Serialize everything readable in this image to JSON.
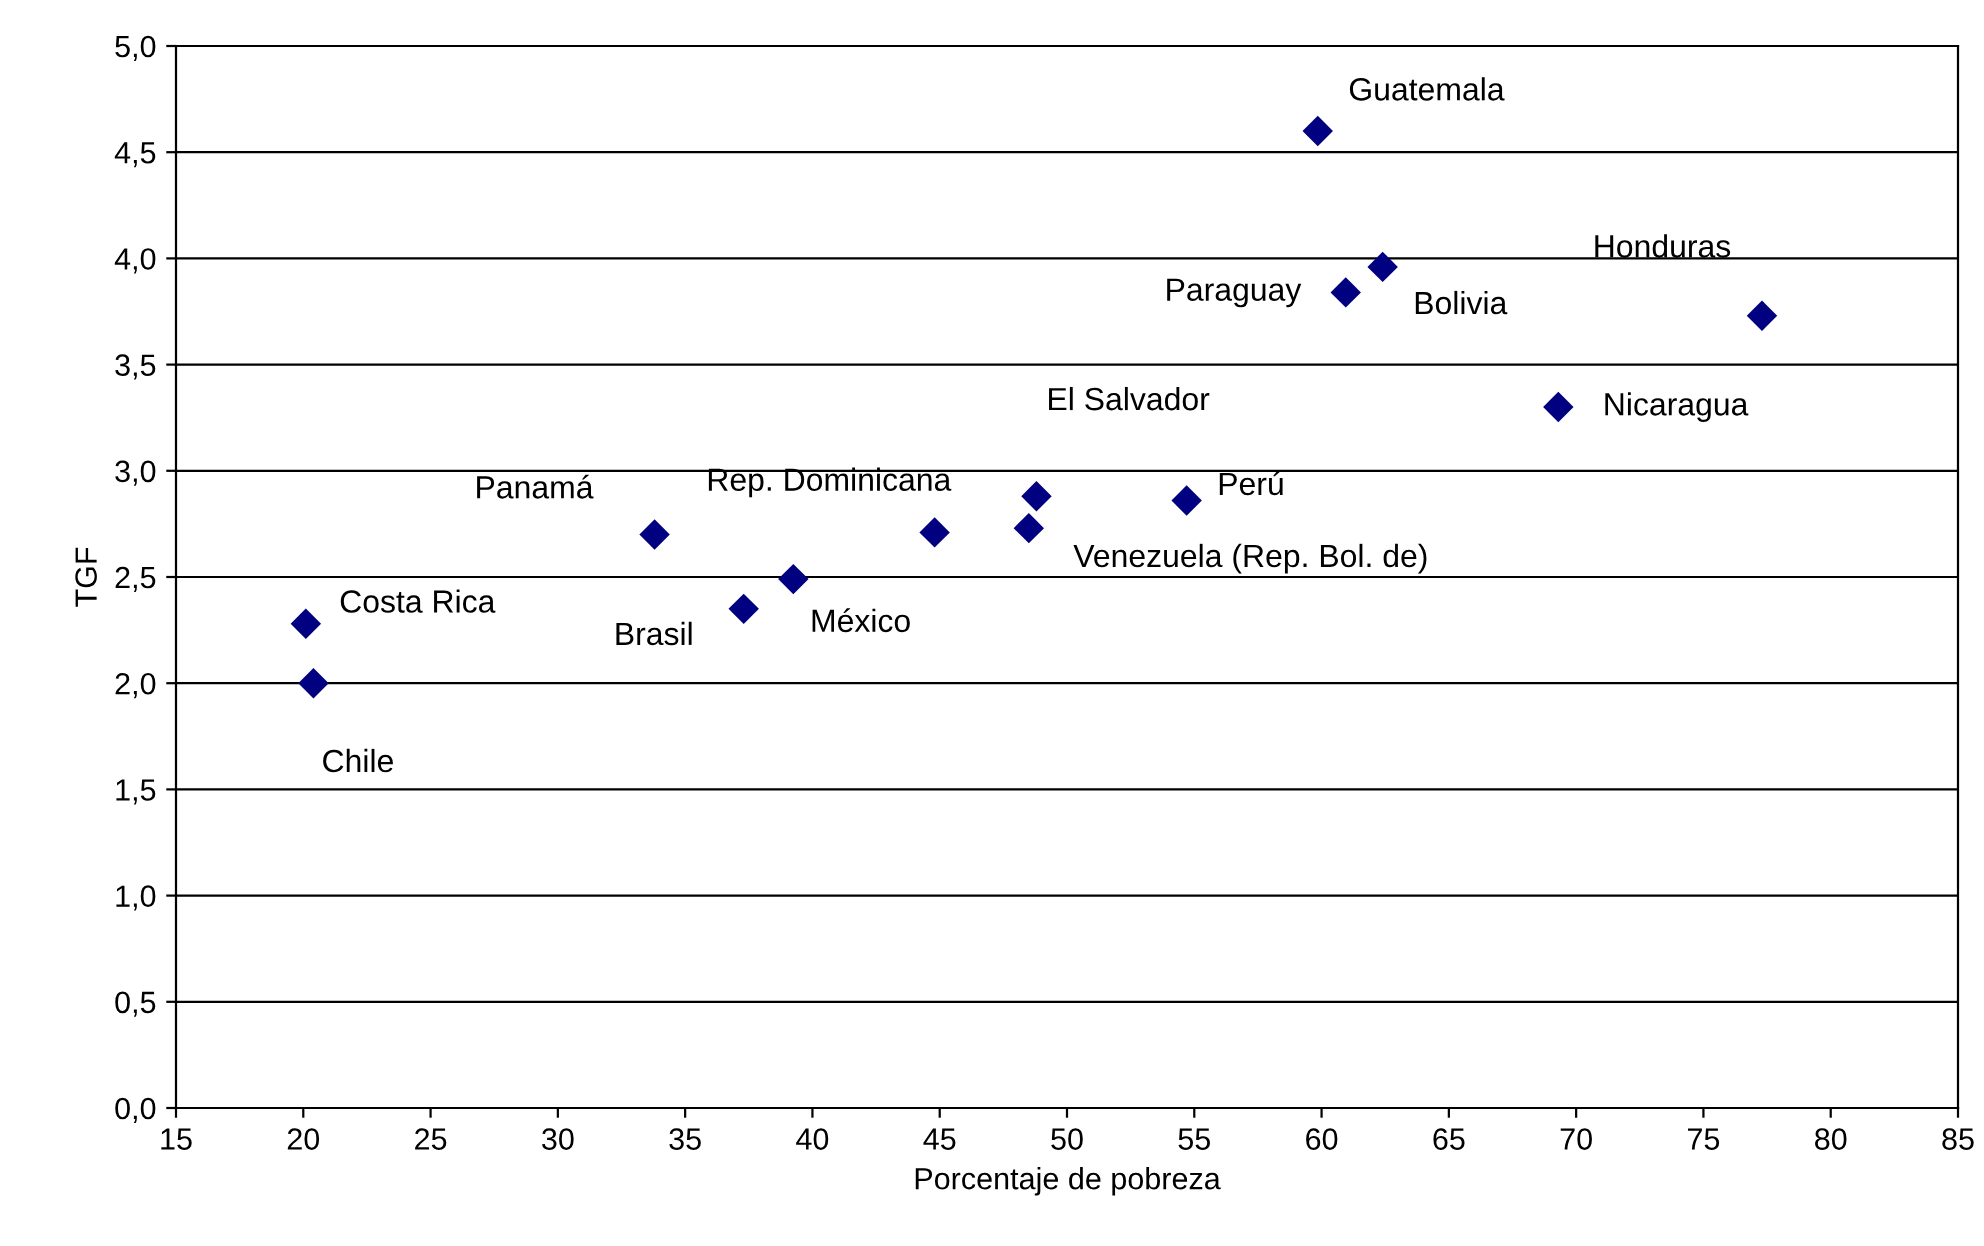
{
  "chart_data": {
    "type": "scatter",
    "xlabel": "Porcentaje de pobreza",
    "ylabel": "TGF",
    "series": [
      {
        "color": "#000080",
        "x": [
          20.1,
          20.4,
          33.8,
          37.3,
          39.25,
          44.8,
          48.8,
          48.5,
          59.85,
          60.95,
          62.4,
          77.3,
          69.3,
          54.7
        ],
        "values": [
          2.28,
          2.0,
          2.7,
          2.35,
          2.49,
          2.71,
          2.88,
          2.73,
          4.6,
          3.84,
          3.96,
          3.73,
          3.3,
          2.86
        ]
      }
    ],
    "annotations": [
      {
        "text": "Costa Rica",
        "x": 20.1,
        "y": 2.28
      },
      {
        "text": "Chile",
        "x": 20.4,
        "y": 2.0
      },
      {
        "text": "Panamá",
        "x": 33.8,
        "y": 2.7
      },
      {
        "text": "Brasil",
        "x": 37.3,
        "y": 2.35
      },
      {
        "text": "México",
        "x": 39.25,
        "y": 2.49
      },
      {
        "text": "Rep. Dominicana",
        "x": 44.8,
        "y": 2.71
      },
      {
        "text": "El Salvador",
        "x": 48.8,
        "y": 2.88
      },
      {
        "text": "Venezuela (Rep. Bol. de)",
        "x": 48.5,
        "y": 2.73
      },
      {
        "text": "Guatemala",
        "x": 59.85,
        "y": 4.6
      },
      {
        "text": "Paraguay",
        "x": 60.95,
        "y": 3.84
      },
      {
        "text": "Bolivia",
        "x": 62.4,
        "y": 3.96
      },
      {
        "text": "Honduras",
        "x": 77.3,
        "y": 3.73
      },
      {
        "text": "Nicaragua",
        "x": 69.3,
        "y": 3.3
      },
      {
        "text": "Perú",
        "x": 54.7,
        "y": 2.86
      }
    ],
    "xlim": [
      15,
      85
    ],
    "xticks": [
      15,
      20,
      25,
      30,
      35,
      40,
      45,
      50,
      55,
      60,
      65,
      70,
      75,
      80,
      85
    ],
    "ylim": [
      0,
      5
    ],
    "yticks": [
      {
        "value": 0,
        "label": "0,0"
      },
      {
        "value": 0.5,
        "label": "0,5"
      },
      {
        "value": 1,
        "label": "1,0"
      },
      {
        "value": 1.5,
        "label": "1,5"
      },
      {
        "value": 2,
        "label": "2,0"
      },
      {
        "value": 2.5,
        "label": "2,5"
      },
      {
        "value": 3,
        "label": "3,0"
      },
      {
        "value": 3.5,
        "label": "3,5"
      },
      {
        "value": 4,
        "label": "4,0"
      },
      {
        "value": 4.5,
        "label": "4,5"
      },
      {
        "value": 5,
        "label": "5,0"
      }
    ],
    "grid": "y",
    "marker": "diamond"
  }
}
